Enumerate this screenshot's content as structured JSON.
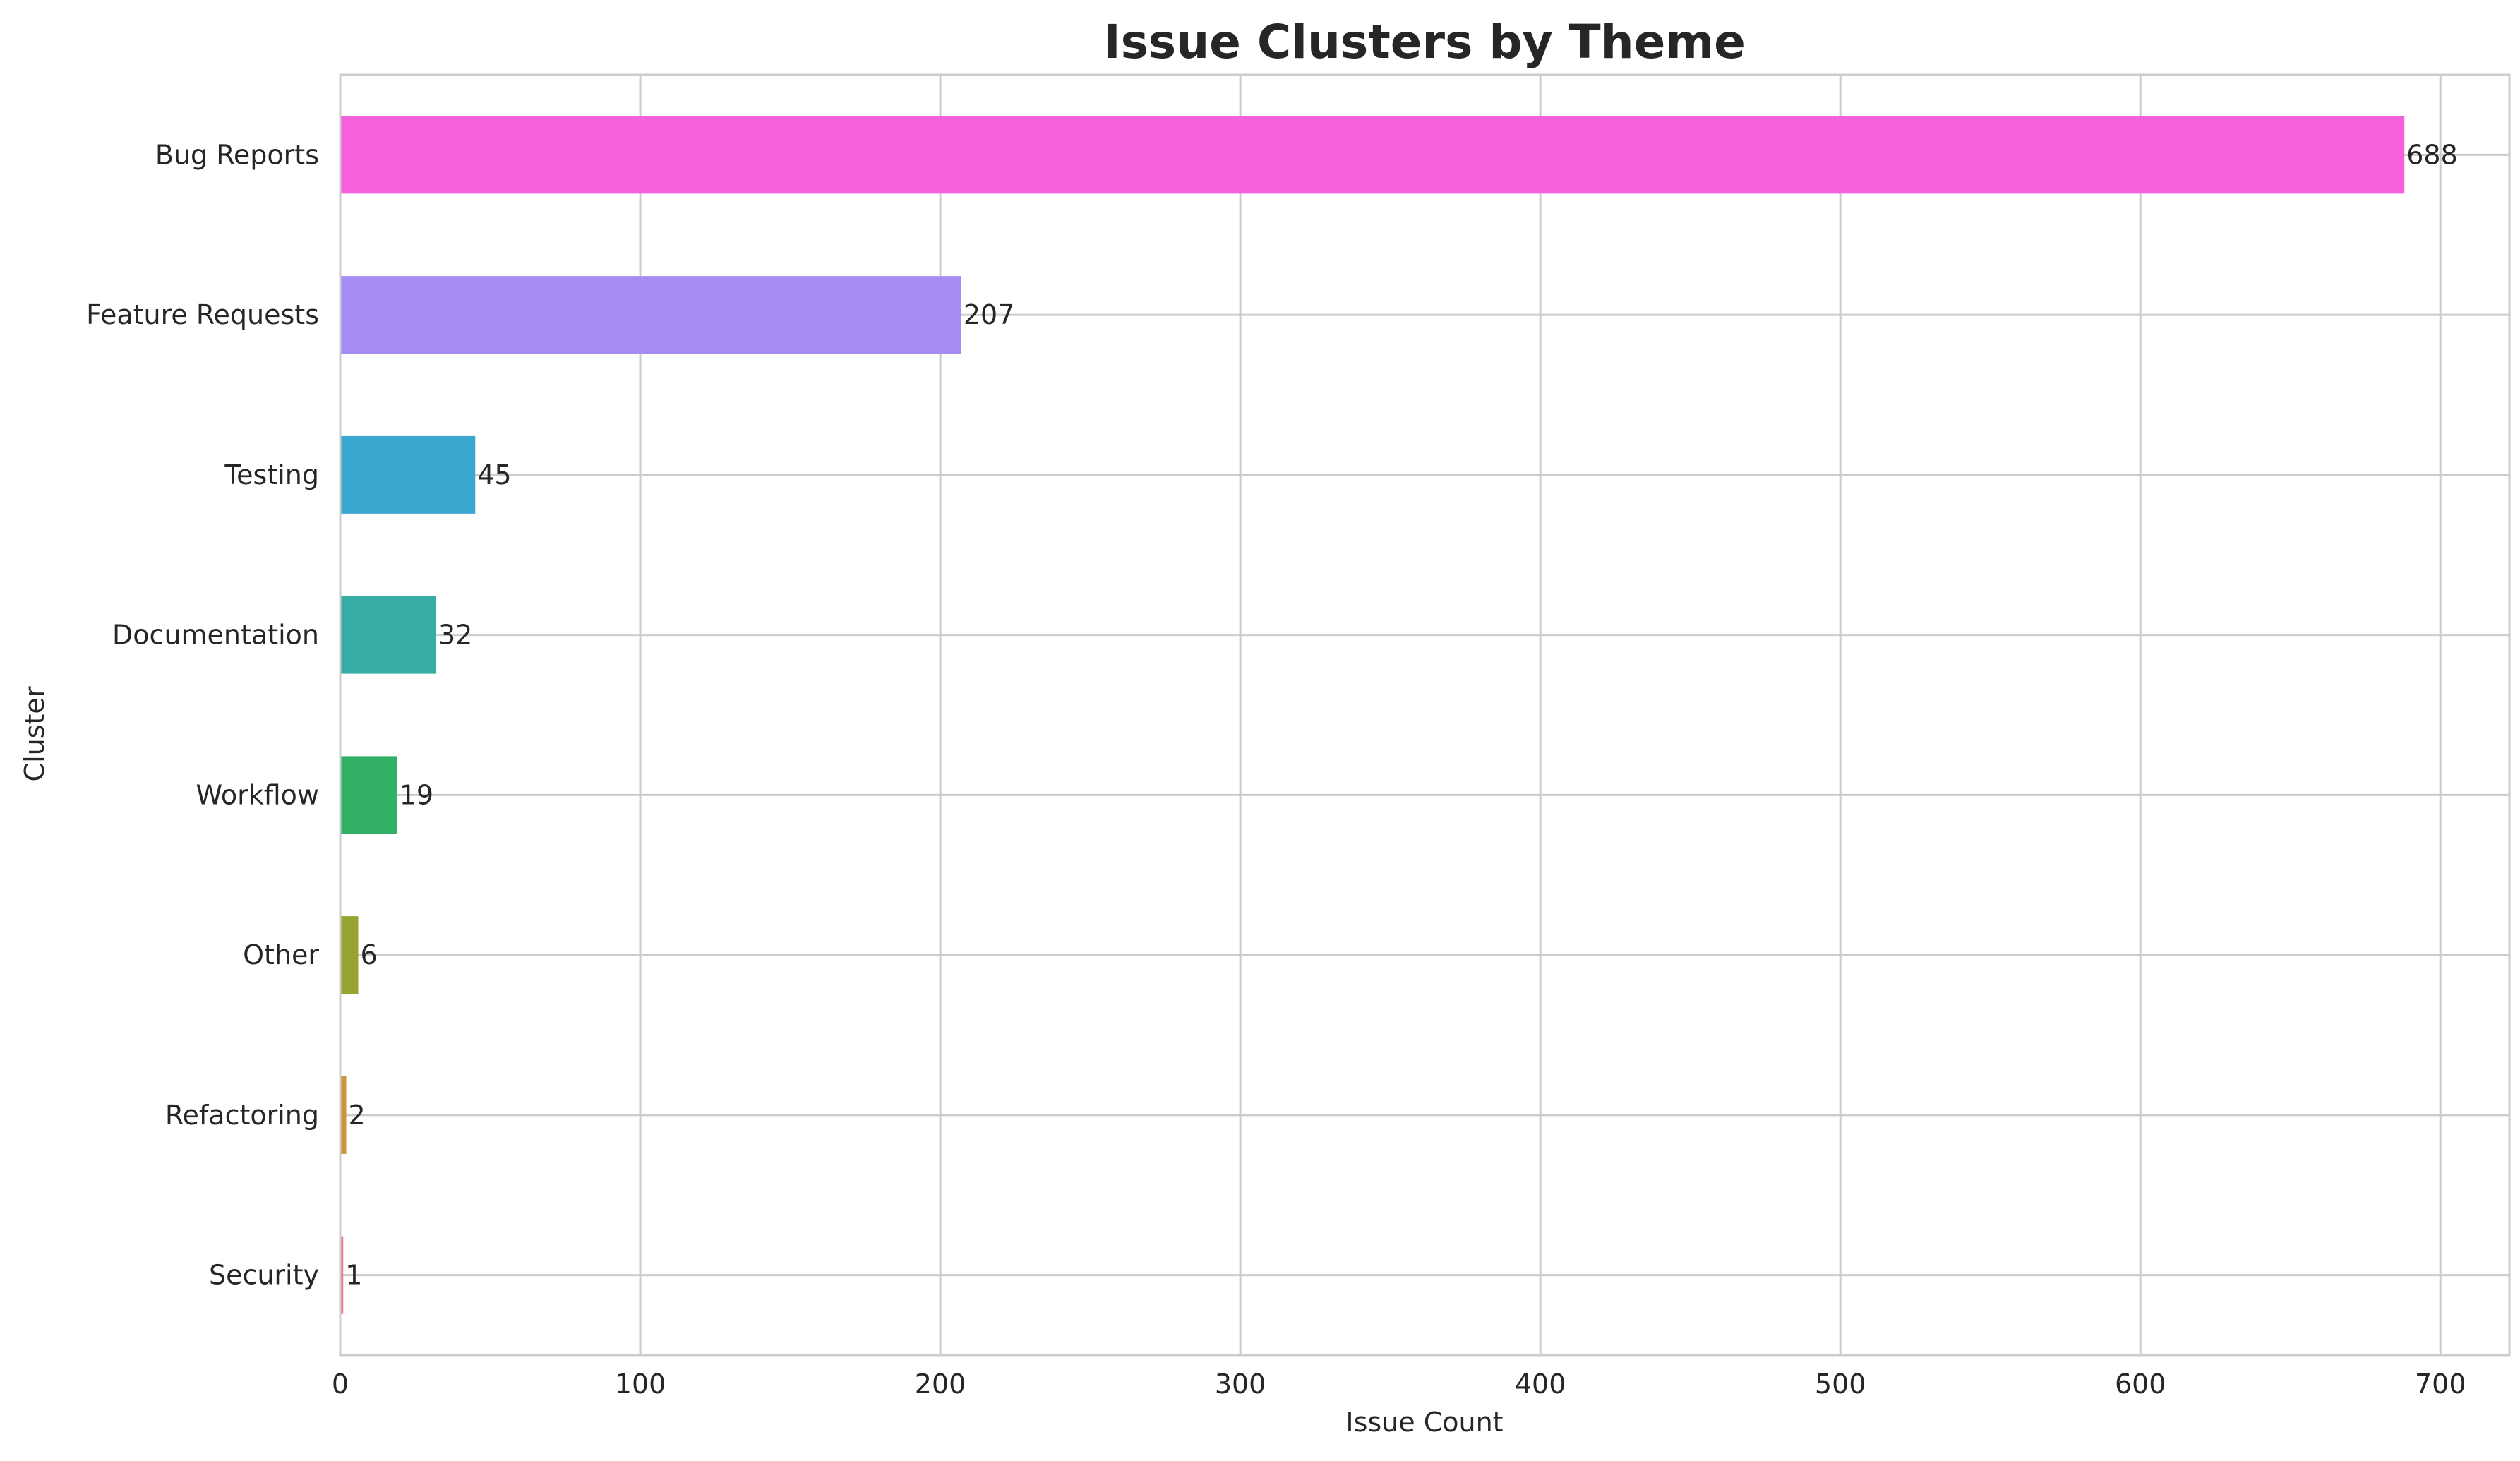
{
  "chart_data": {
    "type": "bar",
    "orientation": "horizontal",
    "title": "Issue Clusters by Theme",
    "xlabel": "Issue Count",
    "ylabel": "Cluster",
    "categories": [
      "Bug Reports",
      "Feature Requests",
      "Testing",
      "Documentation",
      "Workflow",
      "Other",
      "Refactoring",
      "Security"
    ],
    "values": [
      688,
      207,
      45,
      32,
      19,
      6,
      2,
      1
    ],
    "colors": [
      "#f561dd",
      "#a48cf4",
      "#39a7d0",
      "#36ada4",
      "#32b166",
      "#97a431",
      "#cc963b",
      "#f77189"
    ],
    "xlim": [
      0,
      723
    ],
    "xticks": [
      0,
      100,
      200,
      300,
      400,
      500,
      600,
      700
    ],
    "grid": true
  }
}
